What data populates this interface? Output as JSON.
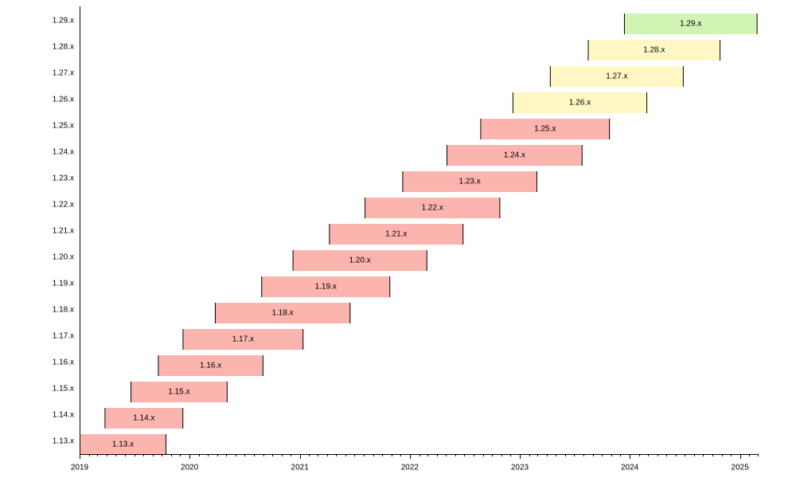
{
  "chart_data": {
    "type": "bar",
    "orientation": "horizontal",
    "title": "",
    "xlabel": "",
    "ylabel": "",
    "grid": false,
    "x_ticks": [
      "2019",
      "2020",
      "2021",
      "2022",
      "2023",
      "2024",
      "2025"
    ],
    "xlim": [
      "2019-01-01",
      "2025-03-01"
    ],
    "colors": {
      "eol": "#fbb4ae",
      "maintenance": "#fff8c4",
      "current": "#d0f4b4",
      "axis": "#000000"
    },
    "categories": [
      "1.29.x",
      "1.28.x",
      "1.27.x",
      "1.26.x",
      "1.25.x",
      "1.24.x",
      "1.23.x",
      "1.22.x",
      "1.21.x",
      "1.20.x",
      "1.19.x",
      "1.18.x",
      "1.17.x",
      "1.16.x",
      "1.15.x",
      "1.14.x",
      "1.13.x"
    ],
    "bars": [
      {
        "label": "1.29.x",
        "start": "2023-12-13",
        "end": "2025-02-28",
        "status": "current"
      },
      {
        "label": "1.28.x",
        "start": "2023-08-15",
        "end": "2024-10-28",
        "status": "maintenance"
      },
      {
        "label": "1.27.x",
        "start": "2023-04-11",
        "end": "2024-06-28",
        "status": "maintenance"
      },
      {
        "label": "1.26.x",
        "start": "2022-12-08",
        "end": "2024-02-28",
        "status": "maintenance"
      },
      {
        "label": "1.25.x",
        "start": "2022-08-23",
        "end": "2023-10-27",
        "status": "eol"
      },
      {
        "label": "1.24.x",
        "start": "2022-05-03",
        "end": "2023-07-28",
        "status": "eol"
      },
      {
        "label": "1.23.x",
        "start": "2021-12-07",
        "end": "2023-02-28",
        "status": "eol"
      },
      {
        "label": "1.22.x",
        "start": "2021-08-04",
        "end": "2022-10-28",
        "status": "eol"
      },
      {
        "label": "1.21.x",
        "start": "2021-04-08",
        "end": "2022-06-28",
        "status": "eol"
      },
      {
        "label": "1.20.x",
        "start": "2020-12-08",
        "end": "2022-02-28",
        "status": "eol"
      },
      {
        "label": "1.19.x",
        "start": "2020-08-26",
        "end": "2021-10-28",
        "status": "eol"
      },
      {
        "label": "1.18.x",
        "start": "2020-03-25",
        "end": "2021-06-18",
        "status": "eol"
      },
      {
        "label": "1.17.x",
        "start": "2019-12-09",
        "end": "2021-01-13",
        "status": "eol"
      },
      {
        "label": "1.16.x",
        "start": "2019-09-18",
        "end": "2020-09-02",
        "status": "eol"
      },
      {
        "label": "1.15.x",
        "start": "2019-06-19",
        "end": "2020-05-06",
        "status": "eol"
      },
      {
        "label": "1.14.x",
        "start": "2019-03-25",
        "end": "2019-12-11",
        "status": "eol"
      },
      {
        "label": "1.13.x",
        "start": "2018-12-03",
        "end": "2019-10-16",
        "status": "eol"
      }
    ]
  }
}
